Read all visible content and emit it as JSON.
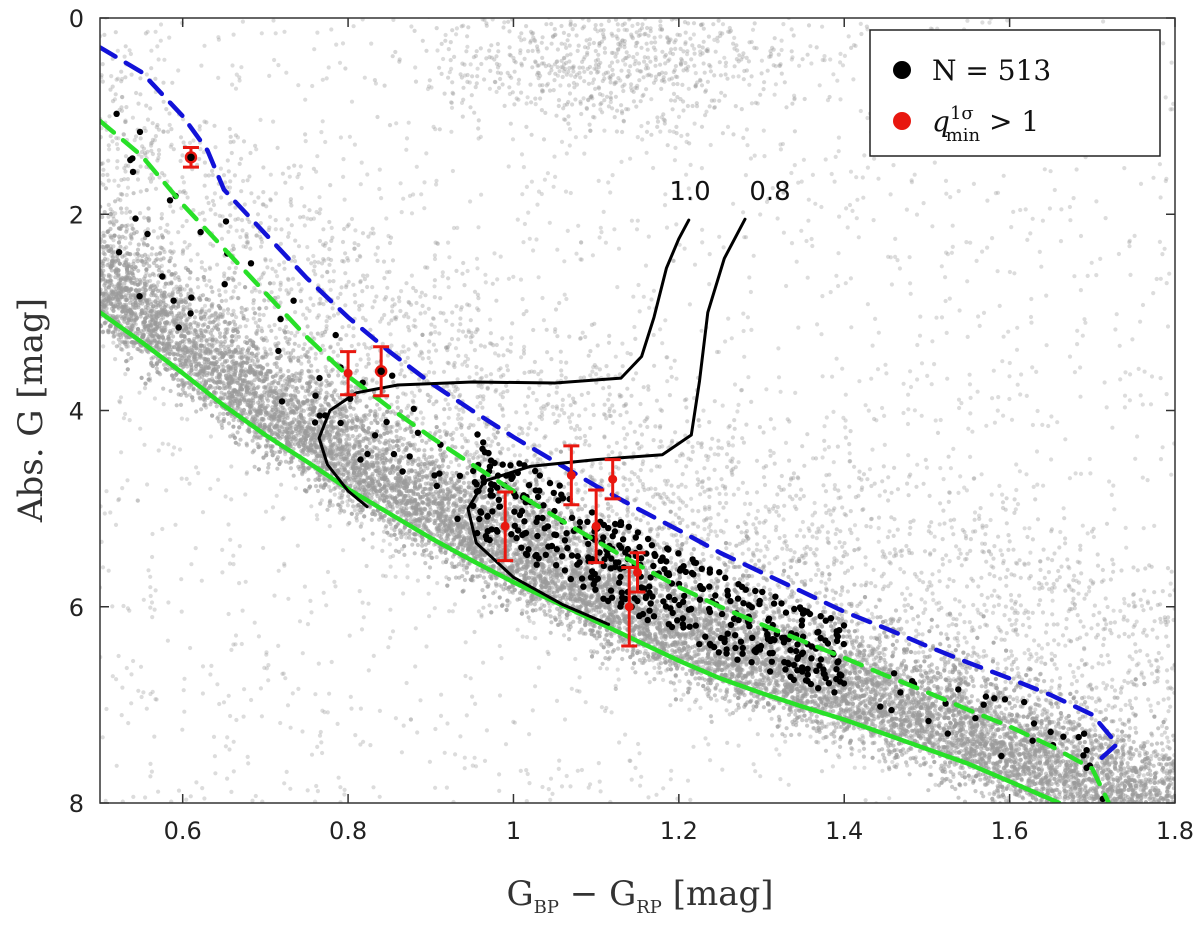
{
  "chart_data": {
    "type": "scatter",
    "title": "",
    "xlabel": {
      "main": "G",
      "sub1": "BP",
      "mid": " − G",
      "sub2": "RP",
      "unit": "  [mag]"
    },
    "ylabel": "Abs. G  [mag]",
    "xlim": [
      0.5,
      1.8
    ],
    "ylim": [
      0,
      8
    ],
    "y_inverted": true,
    "x_ticks": [
      0.6,
      0.8,
      1,
      1.2,
      1.4,
      1.6,
      1.8
    ],
    "y_ticks": [
      0,
      2,
      4,
      6,
      8
    ],
    "legend": {
      "position": "top-right",
      "entries": [
        {
          "label": "N = 513",
          "color": "#000000"
        },
        {
          "label": "q^{1σ}_{min} > 1",
          "label_main": "q",
          "label_sup": "1σ",
          "label_sub": "min",
          "label_tail": " > 1",
          "color": "#e8170f"
        }
      ]
    },
    "colors": {
      "background_field": "#9a9a9a",
      "sample": "#000000",
      "highlight": "#e8170f",
      "main_sequence": "#28e028",
      "binary_sequence": "#28e028",
      "upper_limit": "#1212d8",
      "isochrone": "#000000"
    },
    "series": [
      {
        "name": "main sequence",
        "style": "solid",
        "color_key": "main_sequence",
        "points": [
          [
            0.5,
            3.0
          ],
          [
            0.55,
            3.3
          ],
          [
            0.6,
            3.62
          ],
          [
            0.65,
            3.95
          ],
          [
            0.7,
            4.25
          ],
          [
            0.75,
            4.52
          ],
          [
            0.8,
            4.8
          ],
          [
            0.85,
            5.05
          ],
          [
            0.9,
            5.3
          ],
          [
            0.95,
            5.53
          ],
          [
            1.0,
            5.75
          ],
          [
            1.05,
            5.95
          ],
          [
            1.1,
            6.15
          ],
          [
            1.15,
            6.35
          ],
          [
            1.2,
            6.55
          ],
          [
            1.25,
            6.73
          ],
          [
            1.3,
            6.88
          ],
          [
            1.35,
            7.02
          ],
          [
            1.4,
            7.15
          ],
          [
            1.45,
            7.3
          ],
          [
            1.5,
            7.45
          ],
          [
            1.55,
            7.6
          ],
          [
            1.6,
            7.78
          ],
          [
            1.66,
            8.0
          ]
        ]
      },
      {
        "name": "equal-mass binary sequence",
        "style": "dashed",
        "color_key": "binary_sequence",
        "points": [
          [
            0.5,
            1.05
          ],
          [
            0.55,
            1.4
          ],
          [
            0.6,
            1.9
          ],
          [
            0.65,
            2.35
          ],
          [
            0.7,
            2.8
          ],
          [
            0.75,
            3.25
          ],
          [
            0.8,
            3.65
          ],
          [
            0.85,
            3.97
          ],
          [
            0.9,
            4.27
          ],
          [
            0.95,
            4.55
          ],
          [
            1.0,
            4.82
          ],
          [
            1.05,
            5.08
          ],
          [
            1.1,
            5.33
          ],
          [
            1.15,
            5.57
          ],
          [
            1.2,
            5.8
          ],
          [
            1.25,
            6.0
          ],
          [
            1.3,
            6.18
          ],
          [
            1.35,
            6.35
          ],
          [
            1.4,
            6.52
          ],
          [
            1.45,
            6.7
          ],
          [
            1.5,
            6.87
          ],
          [
            1.55,
            7.05
          ],
          [
            1.6,
            7.22
          ],
          [
            1.65,
            7.42
          ],
          [
            1.7,
            7.65
          ],
          [
            1.72,
            8.0
          ]
        ]
      },
      {
        "name": "upper limit",
        "style": "dashed",
        "color_key": "upper_limit",
        "points": [
          [
            0.5,
            0.3
          ],
          [
            0.55,
            0.55
          ],
          [
            0.6,
            1.0
          ],
          [
            0.63,
            1.35
          ],
          [
            0.65,
            1.75
          ],
          [
            0.7,
            2.2
          ],
          [
            0.75,
            2.65
          ],
          [
            0.8,
            3.05
          ],
          [
            0.85,
            3.4
          ],
          [
            0.9,
            3.72
          ],
          [
            0.95,
            4.0
          ],
          [
            1.0,
            4.27
          ],
          [
            1.05,
            4.52
          ],
          [
            1.1,
            4.77
          ],
          [
            1.15,
            5.0
          ],
          [
            1.2,
            5.22
          ],
          [
            1.25,
            5.45
          ],
          [
            1.3,
            5.65
          ],
          [
            1.35,
            5.85
          ],
          [
            1.4,
            6.05
          ],
          [
            1.45,
            6.22
          ],
          [
            1.5,
            6.4
          ],
          [
            1.55,
            6.57
          ],
          [
            1.6,
            6.73
          ],
          [
            1.65,
            6.9
          ],
          [
            1.7,
            7.1
          ],
          [
            1.73,
            7.4
          ],
          [
            1.71,
            7.55
          ]
        ]
      },
      {
        "name": "isochrone 1.0",
        "label": "1.0",
        "style": "solid",
        "color_key": "isochrone",
        "points": [
          [
            0.823,
            4.98
          ],
          [
            0.8,
            4.82
          ],
          [
            0.775,
            4.55
          ],
          [
            0.765,
            4.28
          ],
          [
            0.778,
            4.0
          ],
          [
            0.81,
            3.82
          ],
          [
            0.86,
            3.74
          ],
          [
            0.95,
            3.71
          ],
          [
            1.05,
            3.72
          ],
          [
            1.13,
            3.67
          ],
          [
            1.155,
            3.45
          ],
          [
            1.17,
            3.05
          ],
          [
            1.185,
            2.55
          ],
          [
            1.2,
            2.25
          ],
          [
            1.212,
            2.06
          ]
        ]
      },
      {
        "name": "isochrone 0.8",
        "label": "0.8",
        "style": "solid",
        "color_key": "isochrone",
        "points": [
          [
            1.115,
            6.18
          ],
          [
            1.06,
            5.98
          ],
          [
            1.0,
            5.7
          ],
          [
            0.955,
            5.35
          ],
          [
            0.945,
            5.0
          ],
          [
            0.965,
            4.72
          ],
          [
            1.02,
            4.57
          ],
          [
            1.1,
            4.5
          ],
          [
            1.18,
            4.45
          ],
          [
            1.215,
            4.25
          ],
          [
            1.225,
            3.7
          ],
          [
            1.235,
            3.0
          ],
          [
            1.255,
            2.45
          ],
          [
            1.28,
            2.05
          ]
        ]
      }
    ],
    "highlight_points": [
      {
        "x": 0.61,
        "y": 1.42,
        "err": 0.1,
        "ring": true
      },
      {
        "x": 0.8,
        "y": 3.62,
        "err": 0.22,
        "ring": false
      },
      {
        "x": 0.84,
        "y": 3.6,
        "err": 0.25,
        "ring": true
      },
      {
        "x": 0.99,
        "y": 5.18,
        "err": 0.35,
        "ring": false
      },
      {
        "x": 1.07,
        "y": 4.66,
        "err": 0.3,
        "ring": false
      },
      {
        "x": 1.1,
        "y": 5.18,
        "err": 0.37,
        "ring": false
      },
      {
        "x": 1.12,
        "y": 4.7,
        "err": 0.2,
        "ring": false
      },
      {
        "x": 1.15,
        "y": 5.65,
        "err": 0.2,
        "ring": false
      },
      {
        "x": 1.14,
        "y": 6.0,
        "err": 0.4,
        "ring": false
      }
    ],
    "sample_count": 513
  }
}
